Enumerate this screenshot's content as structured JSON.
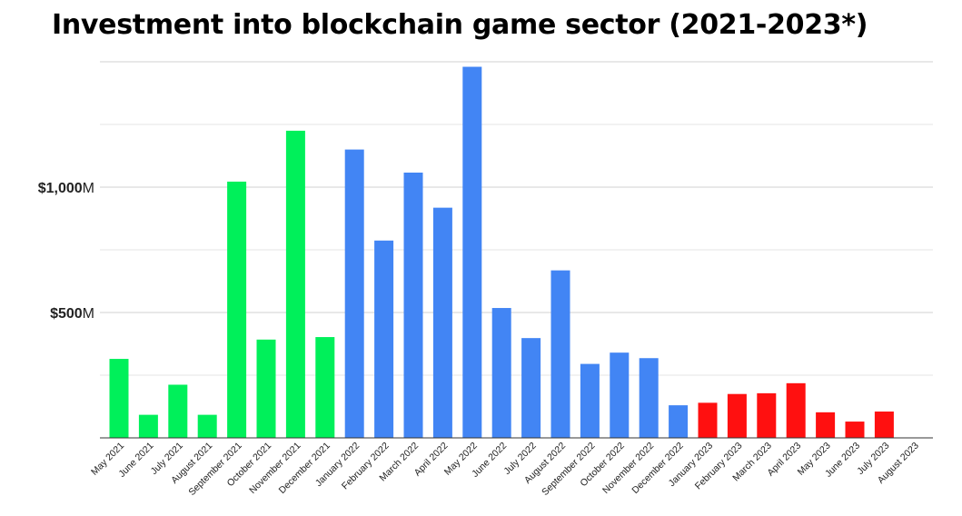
{
  "chart_data": {
    "type": "bar",
    "title": "Investment into blockchain game sector (2021-2023*)",
    "xlabel": "",
    "ylabel": "",
    "ylim": [
      0,
      1500
    ],
    "grid": true,
    "y_ticks": [
      {
        "value": 1000,
        "prefix": "$1,000",
        "suffix": "M"
      },
      {
        "value": 500,
        "prefix": "$500",
        "suffix": "M"
      }
    ],
    "categories": [
      "May 2021",
      "June 2021",
      "July 2021",
      "August 2021",
      "September 2021",
      "October 2021",
      "November 2021",
      "December 2021",
      "January 2022",
      "February 2022",
      "March 2022",
      "April 2022",
      "May 2022",
      "June 2022",
      "July 2022",
      "August 2022",
      "September 2022",
      "October 2022",
      "November 2022",
      "December 2022",
      "January 2023",
      "February 2023",
      "March 2023",
      "April 2023",
      "May 2023",
      "June 2023",
      "July 2023",
      "August 2023"
    ],
    "values": [
      315,
      92,
      212,
      92,
      1022,
      392,
      1225,
      402,
      1150,
      787,
      1058,
      918,
      1480,
      518,
      398,
      668,
      295,
      340,
      318,
      130,
      140,
      175,
      178,
      218,
      102,
      65,
      105,
      0
    ],
    "colors": [
      "#00f05a",
      "#00f05a",
      "#00f05a",
      "#00f05a",
      "#00f05a",
      "#00f05a",
      "#00f05a",
      "#00f05a",
      "#4285f4",
      "#4285f4",
      "#4285f4",
      "#4285f4",
      "#4285f4",
      "#4285f4",
      "#4285f4",
      "#4285f4",
      "#4285f4",
      "#4285f4",
      "#4285f4",
      "#4285f4",
      "#ff1010",
      "#ff1010",
      "#ff1010",
      "#ff1010",
      "#ff1010",
      "#ff1010",
      "#ff1010",
      "#ff1010"
    ]
  }
}
